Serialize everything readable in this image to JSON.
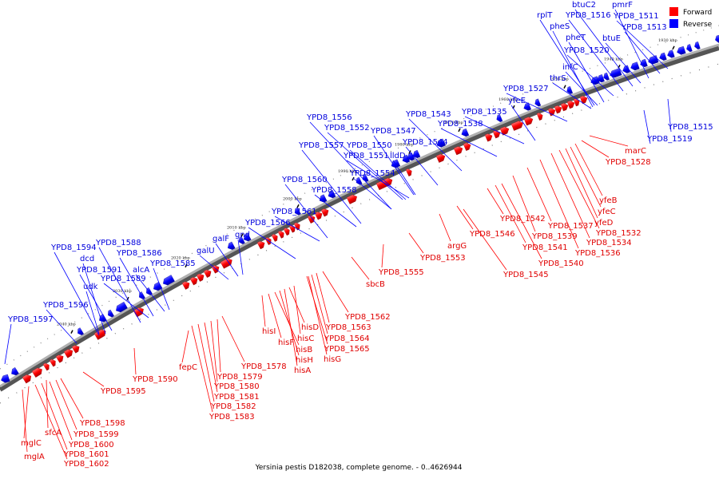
{
  "caption": "Yersinia pestis D182038, complete genome. - 0..4626944",
  "legend": [
    {
      "label": "Forward",
      "color": "#ff0000"
    },
    {
      "label": "Reverse",
      "color": "#0000ff"
    }
  ],
  "colors": {
    "forward": "#ff0000",
    "reverse": "#0000ff",
    "backbone": "#888888"
  },
  "scale_ticks": [
    {
      "label": "1930 kbp",
      "pos": 1930
    },
    {
      "label": "1940 kbp",
      "pos": 1940
    },
    {
      "label": "1950 kbp",
      "pos": 1950
    },
    {
      "label": "1960 kbp",
      "pos": 1960
    },
    {
      "label": "1970 kbp",
      "pos": 1970
    },
    {
      "label": "1980 kbp",
      "pos": 1980
    },
    {
      "label": "1990 kbp",
      "pos": 1990
    },
    {
      "label": "2000 kbp",
      "pos": 2000
    },
    {
      "label": "2010 kbp",
      "pos": 2010
    },
    {
      "label": "2020 kbp",
      "pos": 2020
    },
    {
      "label": "2030 kbp",
      "pos": 2030
    },
    {
      "label": "2040 kbp",
      "pos": 2040
    }
  ],
  "forward_genes": [
    {
      "name": "mglC"
    },
    {
      "name": "mglA"
    },
    {
      "name": "sfcA"
    },
    {
      "name": "YPD8_1598"
    },
    {
      "name": "YPD8_1599"
    },
    {
      "name": "YPD8_1600"
    },
    {
      "name": "YPD8_1601"
    },
    {
      "name": "YPD8_1602"
    },
    {
      "name": "YPD8_1595"
    },
    {
      "name": "YPD8_1590"
    },
    {
      "name": "fepC"
    },
    {
      "name": "YPD8_1578"
    },
    {
      "name": "YPD8_1579"
    },
    {
      "name": "YPD8_1580"
    },
    {
      "name": "YPD8_1581"
    },
    {
      "name": "YPD8_1582"
    },
    {
      "name": "YPD8_1583"
    },
    {
      "name": "hisI"
    },
    {
      "name": "hisF"
    },
    {
      "name": "hisB"
    },
    {
      "name": "hisH"
    },
    {
      "name": "hisA"
    },
    {
      "name": "hisD"
    },
    {
      "name": "hisC"
    },
    {
      "name": "hisG"
    },
    {
      "name": "YPD8_1562"
    },
    {
      "name": "YPD8_1563"
    },
    {
      "name": "YPD8_1564"
    },
    {
      "name": "YPD8_1565"
    },
    {
      "name": "sbcB"
    },
    {
      "name": "YPD8_1555"
    },
    {
      "name": "YPD8_1553"
    },
    {
      "name": "argG"
    },
    {
      "name": "YPD8_1546"
    },
    {
      "name": "YPD8_1545"
    },
    {
      "name": "YPD8_1542"
    },
    {
      "name": "YPD8_1541"
    },
    {
      "name": "YPD8_1540"
    },
    {
      "name": "YPD8_1539"
    },
    {
      "name": "YPD8_1537"
    },
    {
      "name": "YPD8_1536"
    },
    {
      "name": "YPD8_1534"
    },
    {
      "name": "YPD8_1532"
    },
    {
      "name": "yfeD"
    },
    {
      "name": "yfeC"
    },
    {
      "name": "yfeB"
    },
    {
      "name": "YPD8_1528"
    },
    {
      "name": "marC"
    }
  ],
  "reverse_genes": [
    {
      "name": "YPD8_1597"
    },
    {
      "name": "YPD8_1596"
    },
    {
      "name": "YPD8_1594"
    },
    {
      "name": "dcd"
    },
    {
      "name": "YPD8_1591"
    },
    {
      "name": "udk"
    },
    {
      "name": "YPD8_1588"
    },
    {
      "name": "YPD8_1589"
    },
    {
      "name": "YPD8_1586"
    },
    {
      "name": "alcA"
    },
    {
      "name": "YPD8_1585"
    },
    {
      "name": "galU"
    },
    {
      "name": "galF"
    },
    {
      "name": "gnd"
    },
    {
      "name": "YPD8_1566"
    },
    {
      "name": "YPD8_1561"
    },
    {
      "name": "YPD8_1560"
    },
    {
      "name": "YPD8_1558"
    },
    {
      "name": "YPD8_1557"
    },
    {
      "name": "YPD8_1556"
    },
    {
      "name": "YPD8_1552"
    },
    {
      "name": "YPD8_1554"
    },
    {
      "name": "YPD8_1551"
    },
    {
      "name": "YPD8_1550"
    },
    {
      "name": "YPD8_1547"
    },
    {
      "name": "lldD"
    },
    {
      "name": "YPD8_1544"
    },
    {
      "name": "YPD8_1543"
    },
    {
      "name": "YPD8_1538"
    },
    {
      "name": "YPD8_1535"
    },
    {
      "name": "yfeE"
    },
    {
      "name": "YPD8_1527"
    },
    {
      "name": "thrS"
    },
    {
      "name": "infC"
    },
    {
      "name": "pheT"
    },
    {
      "name": "pheS"
    },
    {
      "name": "rplT"
    },
    {
      "name": "YPD8_1520"
    },
    {
      "name": "YPD8_1516"
    },
    {
      "name": "btuC2"
    },
    {
      "name": "btuE"
    },
    {
      "name": "pmrF"
    },
    {
      "name": "YPD8_1511"
    },
    {
      "name": "YPD8_1513"
    },
    {
      "name": "YPD8_1519"
    },
    {
      "name": "YPD8_1515"
    }
  ]
}
